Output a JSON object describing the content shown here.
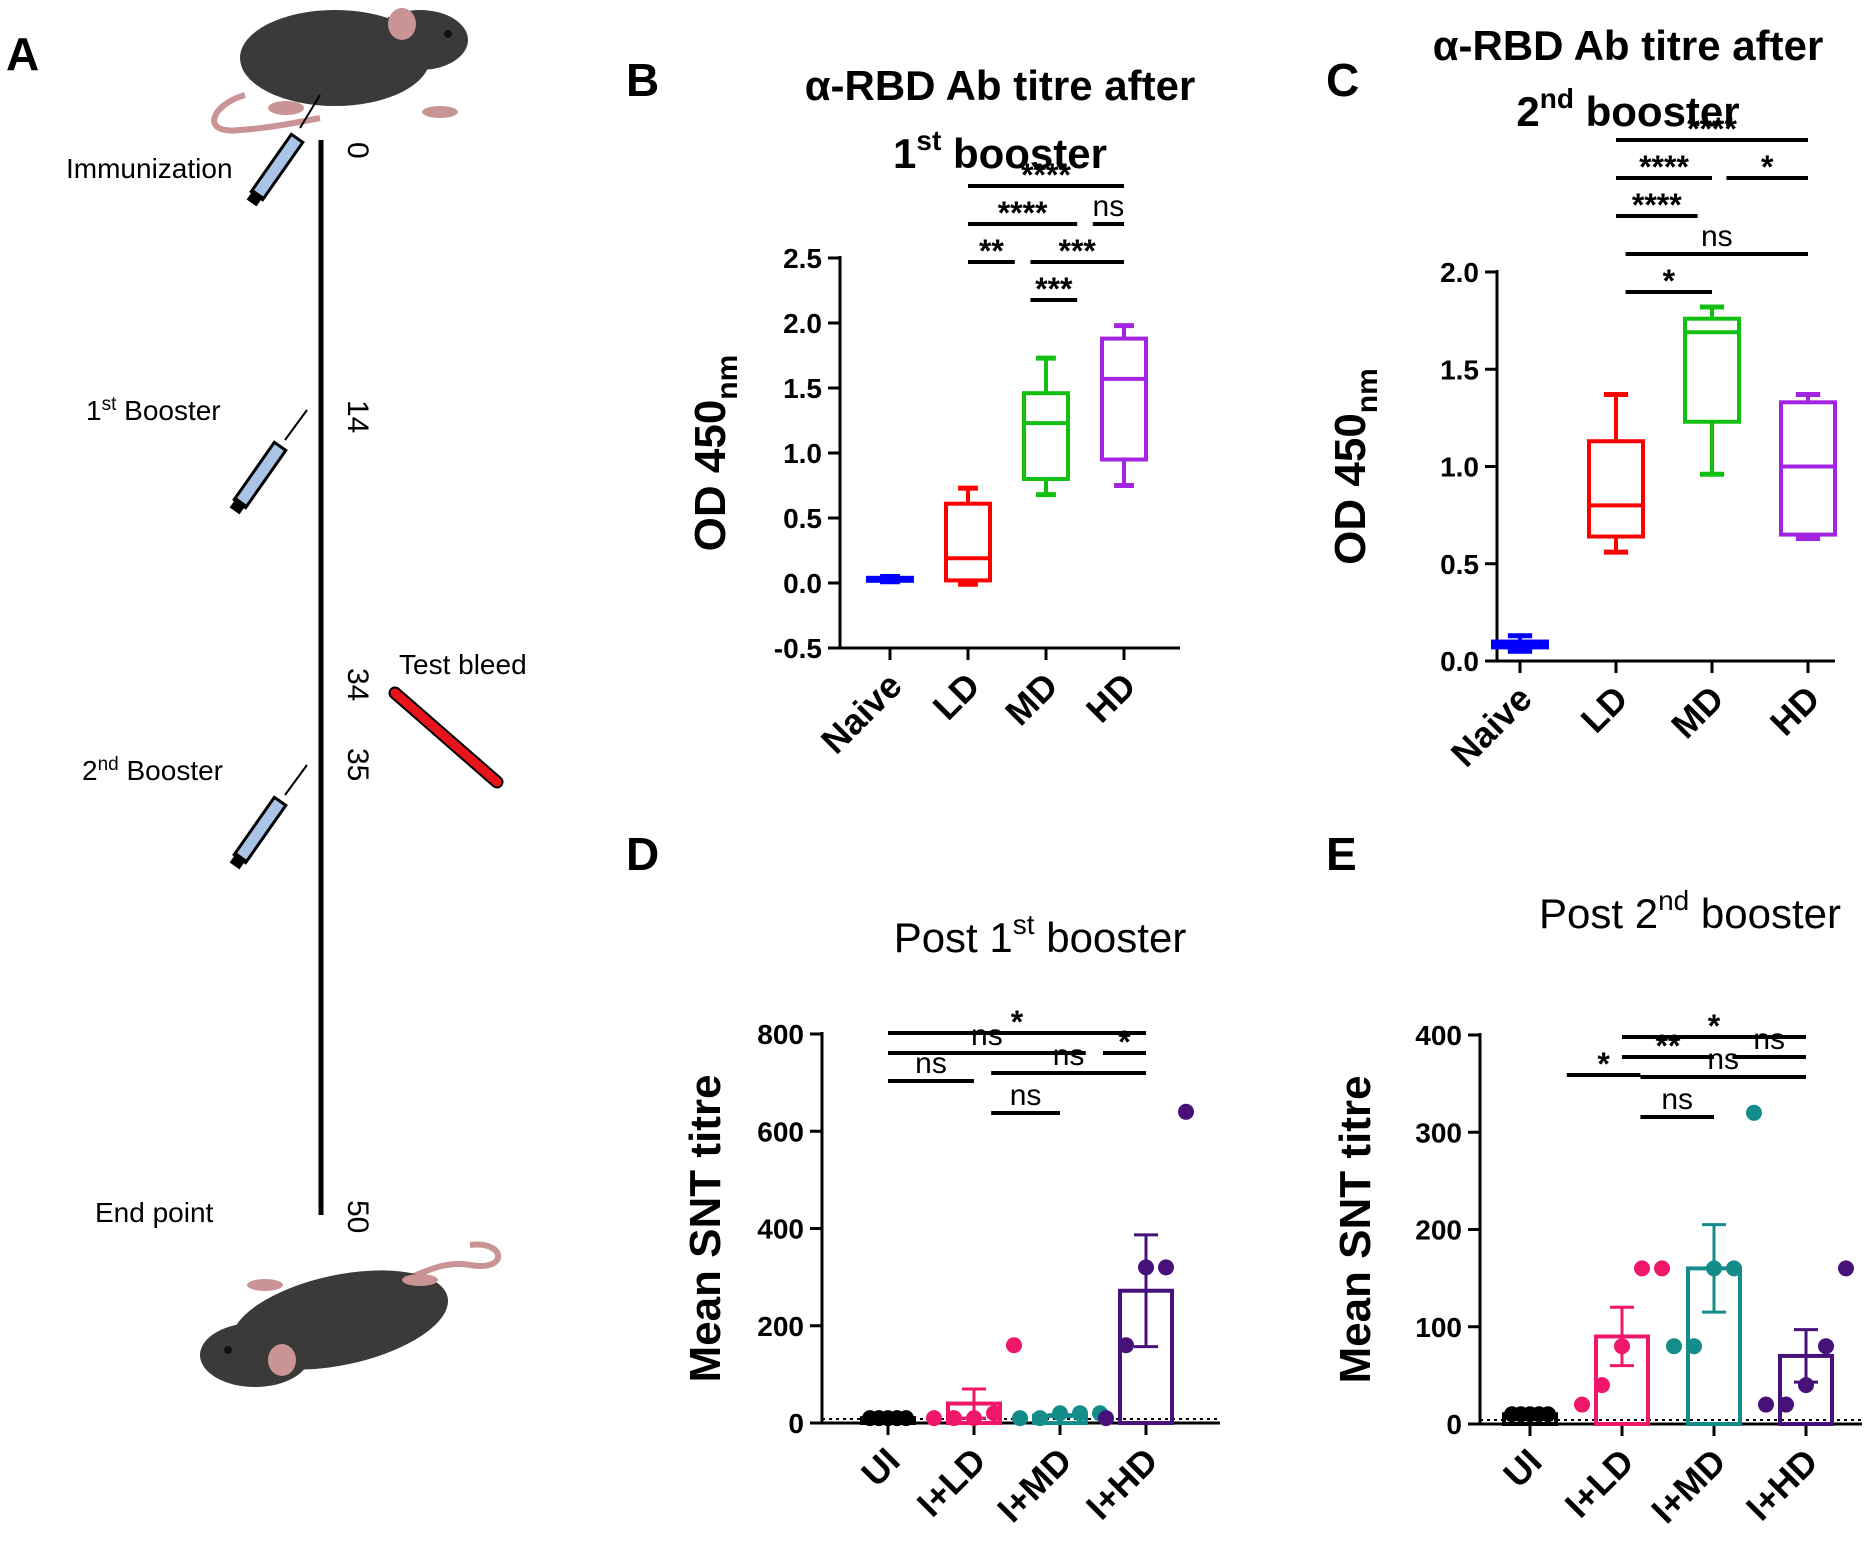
{
  "panels": {
    "A": {
      "letter": "A",
      "events": [
        {
          "label": "Immunization",
          "day": "0"
        },
        {
          "label_main": "1",
          "label_sup": "st",
          "label_rest": " Booster",
          "day": "14"
        },
        {
          "label": "Test bleed",
          "day": "34"
        },
        {
          "label_main": "2",
          "label_sup": "nd",
          "label_rest": " Booster",
          "day": "35"
        },
        {
          "label": "End point",
          "day": "50"
        }
      ],
      "icons": [
        "mouse-icon",
        "syringe-icon",
        "blood-tube-icon"
      ],
      "colors": {
        "syringe": "#a9c4e6",
        "tube": "#e8141b",
        "mouse": "#3a3a3a",
        "tail": "#c99493"
      }
    },
    "B": {
      "letter": "B",
      "title_line1": "α-RBD Ab titre after",
      "title_num": "1",
      "title_sup": "st",
      "title_rest": " booster"
    },
    "C": {
      "letter": "C",
      "title_line1": "α-RBD Ab titre after",
      "title_num": "2",
      "title_sup": "nd",
      "title_rest": " booster"
    },
    "D": {
      "letter": "D",
      "title_pre": "Post 1",
      "title_sup": "st",
      "title_rest": " booster"
    },
    "E": {
      "letter": "E",
      "title_pre": "Post 2",
      "title_sup": "nd",
      "title_rest": " booster"
    }
  },
  "chart_data": [
    {
      "panel": "B",
      "type": "box",
      "title": "α-RBD Ab titre after 1st booster",
      "ylabel": "OD 450",
      "ylabel_sub": "nm",
      "ylim": [
        -0.5,
        2.5
      ],
      "yticks": [
        "-0.5",
        "0.0",
        "0.5",
        "1.0",
        "1.5",
        "2.0",
        "2.5"
      ],
      "categories": [
        "Naive",
        "LD",
        "MD",
        "HD"
      ],
      "colors": [
        "#0000ff",
        "#ff0000",
        "#11c011",
        "#a324e0"
      ],
      "boxes": [
        {
          "min": 0.01,
          "q1": 0.02,
          "median": 0.03,
          "q3": 0.04,
          "max": 0.05
        },
        {
          "min": -0.01,
          "q1": 0.02,
          "median": 0.19,
          "q3": 0.61,
          "max": 0.73
        },
        {
          "min": 0.68,
          "q1": 0.8,
          "median": 1.23,
          "q3": 1.46,
          "max": 1.73
        },
        {
          "min": 0.75,
          "q1": 0.95,
          "median": 1.57,
          "q3": 1.88,
          "max": 1.98
        }
      ],
      "comparisons": [
        {
          "from": 1,
          "to": 3,
          "label": "****",
          "level": 3
        },
        {
          "from": 1,
          "to": 2.4,
          "label": "****",
          "level": 2
        },
        {
          "from": 2.6,
          "to": 3,
          "label": "ns",
          "level": 2
        },
        {
          "from": 1,
          "to": 1.6,
          "label": "**",
          "level": 1
        },
        {
          "from": 1.8,
          "to": 3,
          "label": "***",
          "level": 1
        },
        {
          "from": 1.8,
          "to": 2.4,
          "label": "***",
          "level": 0
        }
      ]
    },
    {
      "panel": "C",
      "type": "box",
      "title": "α-RBD Ab titre after 2nd booster",
      "ylabel": "OD 450",
      "ylabel_sub": "nm",
      "ylim": [
        0,
        2.0
      ],
      "yticks": [
        "0.0",
        "0.5",
        "1.0",
        "1.5",
        "2.0"
      ],
      "categories": [
        "Naive",
        "LD",
        "MD",
        "HD"
      ],
      "colors": [
        "#0000ff",
        "#ff0000",
        "#11c011",
        "#a324e0"
      ],
      "boxes": [
        {
          "min": 0.05,
          "q1": 0.07,
          "median": 0.08,
          "q3": 0.1,
          "max": 0.13
        },
        {
          "min": 0.56,
          "q1": 0.64,
          "median": 0.8,
          "q3": 1.13,
          "max": 1.37
        },
        {
          "min": 0.96,
          "q1": 1.23,
          "median": 1.69,
          "q3": 1.76,
          "max": 1.82
        },
        {
          "min": 0.63,
          "q1": 0.65,
          "median": 1.0,
          "q3": 1.33,
          "max": 1.37
        }
      ],
      "comparisons": [
        {
          "from": 1,
          "to": 3,
          "label": "****",
          "level": 4
        },
        {
          "from": 1,
          "to": 2.0,
          "label": "****",
          "level": 3
        },
        {
          "from": 2.15,
          "to": 3,
          "label": "*",
          "level": 3
        },
        {
          "from": 1,
          "to": 1.85,
          "label": "****",
          "level": 2
        },
        {
          "from": 1.1,
          "to": 3,
          "label": "ns",
          "level": 1
        },
        {
          "from": 1.1,
          "to": 2.0,
          "label": "*",
          "level": 0
        }
      ]
    },
    {
      "panel": "D",
      "type": "bar",
      "title": "Post 1st booster",
      "ylabel": "Mean SNT titre",
      "ylim": [
        0,
        800
      ],
      "yticks": [
        "0",
        "200",
        "400",
        "600",
        "800"
      ],
      "categories": [
        "UI",
        "I+LD",
        "I+MD",
        "I+HD"
      ],
      "colors": [
        "#000000",
        "#f0176b",
        "#138c8a",
        "#46127a"
      ],
      "means": [
        10,
        40,
        15,
        272
      ],
      "sem": [
        0,
        30,
        2,
        115
      ],
      "points": [
        [
          10,
          10,
          10,
          10,
          10
        ],
        [
          10,
          10,
          10,
          20,
          160
        ],
        [
          10,
          10,
          20,
          20,
          20
        ],
        [
          10,
          160,
          320,
          320,
          640
        ]
      ],
      "comparisons": [
        {
          "from": 0,
          "to": 3,
          "label": "*",
          "level": 4
        },
        {
          "from": 0,
          "to": 2.3,
          "label": "ns",
          "level": 3
        },
        {
          "from": 2.5,
          "to": 3,
          "label": "*",
          "level": 3
        },
        {
          "from": 1.2,
          "to": 3,
          "label": "ns",
          "level": 2
        },
        {
          "from": 0,
          "to": 1,
          "label": "ns",
          "level": 1.6
        },
        {
          "from": 1.2,
          "to": 2,
          "label": "ns",
          "level": 0
        }
      ]
    },
    {
      "panel": "E",
      "type": "bar",
      "title": "Post 2nd booster",
      "ylabel": "Mean SNT titre",
      "ylim": [
        0,
        400
      ],
      "yticks": [
        "0",
        "100",
        "200",
        "300",
        "400"
      ],
      "categories": [
        "UI",
        "I+LD",
        "I+MD",
        "I+HD"
      ],
      "colors": [
        "#000000",
        "#f0176b",
        "#138c8a",
        "#46127a"
      ],
      "means": [
        10,
        90,
        160,
        70
      ],
      "sem": [
        0,
        30,
        45,
        27
      ],
      "points": [
        [
          10,
          10,
          10,
          10,
          10
        ],
        [
          20,
          40,
          80,
          160,
          160
        ],
        [
          80,
          80,
          160,
          160,
          320
        ],
        [
          20,
          20,
          40,
          80,
          160
        ]
      ],
      "comparisons": [
        {
          "from": 1,
          "to": 3,
          "label": "*",
          "level": 4
        },
        {
          "from": 1,
          "to": 2,
          "label": "**",
          "level": 3
        },
        {
          "from": 2.2,
          "to": 3,
          "label": "ns",
          "level": 3
        },
        {
          "from": 1.2,
          "to": 3,
          "label": "ns",
          "level": 2
        },
        {
          "from": 0.4,
          "to": 1.2,
          "label": "*",
          "level": 2.1
        },
        {
          "from": 1.2,
          "to": 2,
          "label": "ns",
          "level": 0
        }
      ]
    }
  ]
}
